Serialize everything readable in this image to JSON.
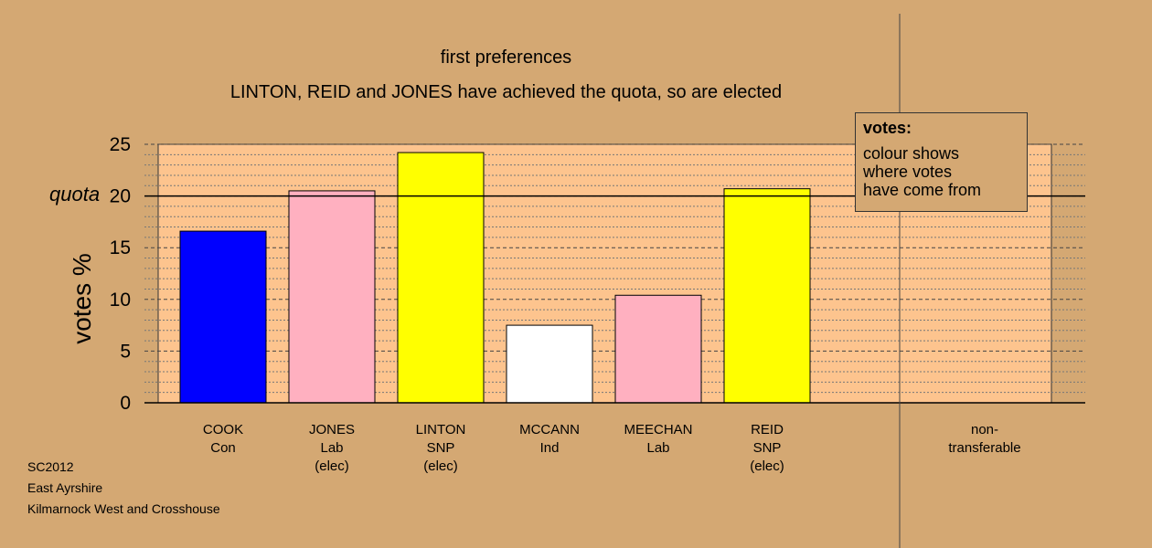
{
  "chart_data": {
    "type": "bar",
    "title": "first preferences",
    "subtitle": "LINTON, REID and JONES have achieved the quota, so are elected",
    "ylabel": "votes %",
    "ylim": [
      0,
      25
    ],
    "yticks": [
      0,
      5,
      10,
      15,
      20,
      25
    ],
    "quota": 20,
    "quota_label": "quota",
    "grid": true,
    "legend_position": "top-right",
    "categories": [
      {
        "name": "COOK",
        "party": "Con",
        "status": "",
        "value": 16.6,
        "color": "#0000ff"
      },
      {
        "name": "JONES",
        "party": "Lab",
        "status": "(elec)",
        "value": 20.5,
        "color": "#ffb0c0"
      },
      {
        "name": "LINTON",
        "party": "SNP",
        "status": "(elec)",
        "value": 24.2,
        "color": "#ffff00"
      },
      {
        "name": "MCCANN",
        "party": "Ind",
        "status": "",
        "value": 7.5,
        "color": "#ffffff"
      },
      {
        "name": "MEECHAN",
        "party": "Lab",
        "status": "",
        "value": 10.4,
        "color": "#ffb0c0"
      },
      {
        "name": "REID",
        "party": "SNP",
        "status": "(elec)",
        "value": 20.7,
        "color": "#ffff00"
      }
    ],
    "nontransferable": {
      "line1": "non-",
      "line2": "transferable",
      "value": 0
    }
  },
  "legend": {
    "title": "votes:",
    "line1": "colour shows",
    "line2": "where votes",
    "line3": "have come from"
  },
  "footer": {
    "line1": "SC2012",
    "line2": "East Ayrshire",
    "line3": "Kilmarnock West and Crosshouse"
  },
  "colors": {
    "background": "#d4a873",
    "plot_area": "#fdc48e"
  }
}
